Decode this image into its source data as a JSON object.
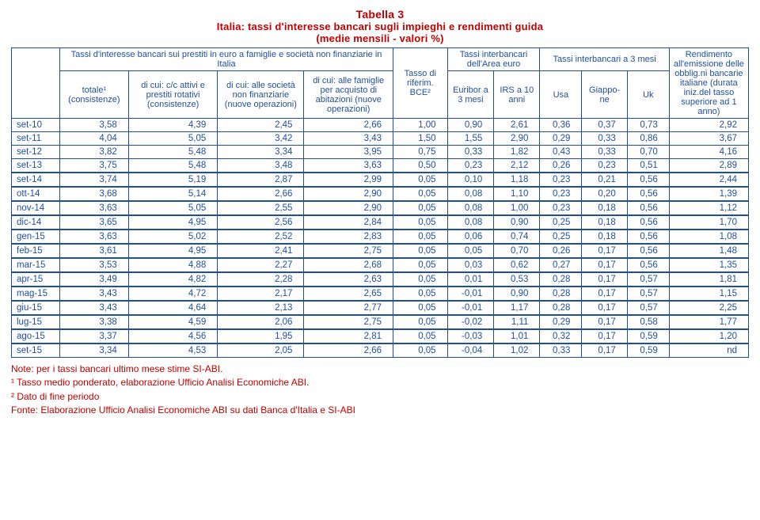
{
  "header": {
    "table_no": "Tabella 3",
    "title": "Italia: tassi d'interesse bancari sugli impieghi e rendimenti guida",
    "unit": "(medie mensili - valori %)"
  },
  "columns": {
    "group_it": "Tassi d'interesse bancari sui prestiti in euro a famiglie e società non finanziarie in Italia",
    "totale": "totale¹ (consistenze)",
    "cc_attivi": "di cui: c/c attivi e prestiti rotativi (consistenze)",
    "soc_nonfin": "di cui: alle società non finanziarie (nuove operazioni)",
    "fam_abit": "di cui: alle famiglie per acquisto di abitazioni (nuove operazioni)",
    "tasso_bce": "Tasso di riferim. BCE²",
    "group_euro": "Tassi interbancari dell'Area euro",
    "euribor": "Euribor a 3 mesi",
    "irs": "IRS a 10 anni",
    "group_3m": "Tassi interbancari a 3 mesi",
    "usa": "Usa",
    "giappone": "Giappo- ne",
    "uk": "Uk",
    "rendimento": "Rendimento all'emissione delle obblig.ni bancarie italiane (durata iniz.del tasso superiore ad 1 anno)"
  },
  "rows_a": [
    {
      "p": "set-10",
      "v": [
        "3,58",
        "4,39",
        "2,45",
        "2,66",
        "1,00",
        "0,90",
        "2,61",
        "0,36",
        "0,37",
        "0,73",
        "2,92"
      ]
    },
    {
      "p": "set-11",
      "v": [
        "4,04",
        "5,05",
        "3,42",
        "3,43",
        "1,50",
        "1,55",
        "2,90",
        "0,29",
        "0,33",
        "0,86",
        "3,67"
      ]
    },
    {
      "p": "set-12",
      "v": [
        "3,82",
        "5,48",
        "3,34",
        "3,95",
        "0,75",
        "0,33",
        "1,82",
        "0,43",
        "0,33",
        "0,70",
        "4,16"
      ]
    },
    {
      "p": "set-13",
      "v": [
        "3,75",
        "5,48",
        "3,48",
        "3,63",
        "0,50",
        "0,23",
        "2,12",
        "0,26",
        "0,23",
        "0,51",
        "2,89"
      ]
    }
  ],
  "rows_b": [
    {
      "p": "set-14",
      "v": [
        "3,74",
        "5,19",
        "2,87",
        "2,99",
        "0,05",
        "0,10",
        "1,18",
        "0,23",
        "0,21",
        "0,56",
        "2,44"
      ]
    },
    {
      "p": "ott-14",
      "v": [
        "3,68",
        "5,14",
        "2,66",
        "2,90",
        "0,05",
        "0,08",
        "1,10",
        "0,23",
        "0,20",
        "0,56",
        "1,39"
      ]
    },
    {
      "p": "nov-14",
      "v": [
        "3,63",
        "5,05",
        "2,55",
        "2,90",
        "0,05",
        "0,08",
        "1,00",
        "0,23",
        "0,18",
        "0,56",
        "1,12"
      ]
    },
    {
      "p": "dic-14",
      "v": [
        "3,65",
        "4,95",
        "2,56",
        "2,84",
        "0,05",
        "0,08",
        "0,90",
        "0,25",
        "0,18",
        "0,56",
        "1,70"
      ]
    },
    {
      "p": "gen-15",
      "v": [
        "3,63",
        "5,02",
        "2,52",
        "2,83",
        "0,05",
        "0,06",
        "0,74",
        "0,25",
        "0,18",
        "0,56",
        "1,08"
      ]
    },
    {
      "p": "feb-15",
      "v": [
        "3,61",
        "4,95",
        "2,41",
        "2,75",
        "0,05",
        "0,05",
        "0,70",
        "0,26",
        "0,17",
        "0,56",
        "1,48"
      ]
    },
    {
      "p": "mar-15",
      "v": [
        "3,53",
        "4,88",
        "2,27",
        "2,68",
        "0,05",
        "0,03",
        "0,62",
        "0,27",
        "0,17",
        "0,56",
        "1,35"
      ]
    },
    {
      "p": "apr-15",
      "v": [
        "3,49",
        "4,82",
        "2,28",
        "2,63",
        "0,05",
        "0,01",
        "0,53",
        "0,28",
        "0,17",
        "0,57",
        "1,81"
      ]
    },
    {
      "p": "mag-15",
      "v": [
        "3,43",
        "4,72",
        "2,17",
        "2,65",
        "0,05",
        "-0,01",
        "0,90",
        "0,28",
        "0,17",
        "0,57",
        "1,15"
      ]
    },
    {
      "p": "giu-15",
      "v": [
        "3,43",
        "4,64",
        "2,13",
        "2,77",
        "0,05",
        "-0,01",
        "1,17",
        "0,28",
        "0,17",
        "0,57",
        "2,25"
      ]
    },
    {
      "p": "lug-15",
      "v": [
        "3,38",
        "4,59",
        "2,06",
        "2,75",
        "0,05",
        "-0,02",
        "1,11",
        "0,29",
        "0,17",
        "0,58",
        "1,77"
      ]
    },
    {
      "p": "ago-15",
      "v": [
        "3,37",
        "4,56",
        "1,95",
        "2,81",
        "0,05",
        "-0,03",
        "1,01",
        "0,32",
        "0,17",
        "0,59",
        "1,20"
      ]
    },
    {
      "p": "set-15",
      "v": [
        "3,34",
        "4,53",
        "2,05",
        "2,66",
        "0,05",
        "-0,04",
        "1,02",
        "0,33",
        "0,17",
        "0,59",
        "nd"
      ]
    }
  ],
  "notes": {
    "n1": "Note: per i tassi bancari ultimo mese stime SI-ABI.",
    "n2": "¹ Tasso medio ponderato, elaborazione Ufficio Analisi Economiche ABI.",
    "n3": "² Dato di fine periodo",
    "n4": "Fonte: Elaborazione Ufficio Analisi Economiche ABI su dati Banca d'Italia e SI-ABI"
  }
}
